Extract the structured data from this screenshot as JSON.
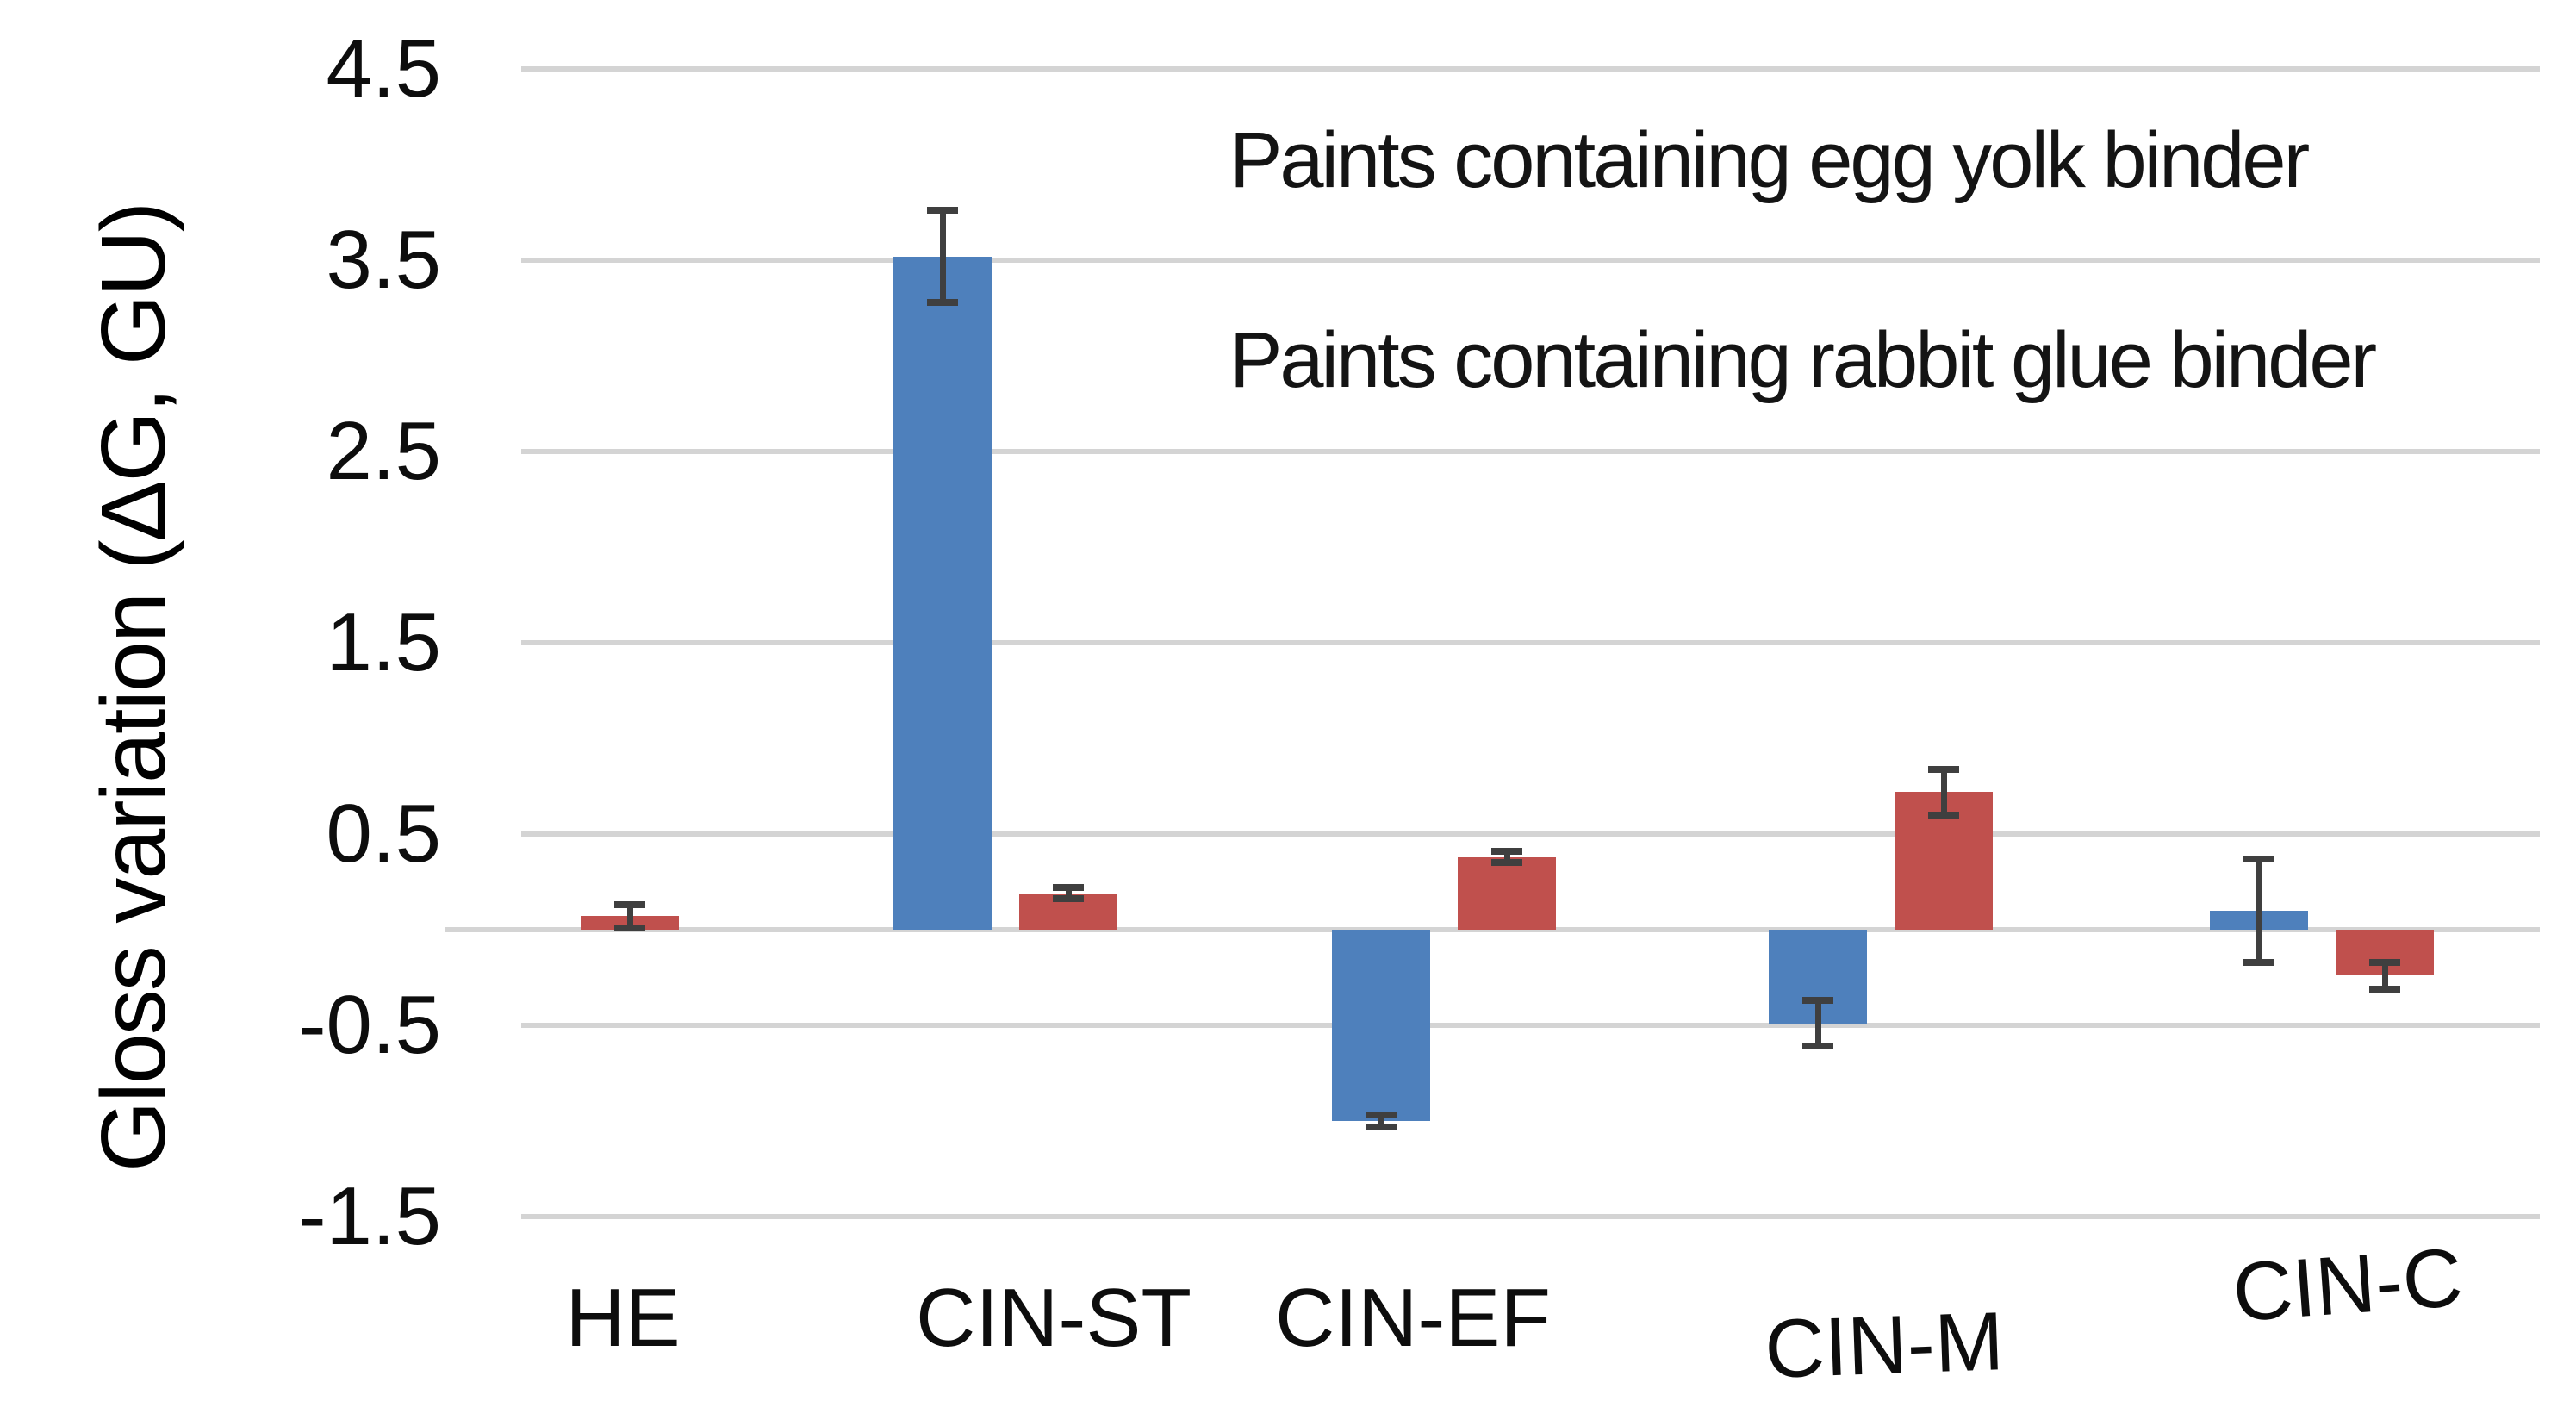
{
  "chart_data": {
    "type": "bar",
    "title": "",
    "xlabel": "",
    "ylabel": "Gloss variation (ΔG, GU)",
    "categories": [
      "HE",
      "CIN-ST",
      "CIN-EF",
      "CIN-M",
      "CIN-C"
    ],
    "series": [
      {
        "name": "Paints containing egg yolk binder",
        "color": "#4E80BC",
        "values": [
          0,
          3.52,
          -1.0,
          -0.49,
          0.1
        ],
        "errors": [
          0,
          0.24,
          0.03,
          0.12,
          0.27
        ]
      },
      {
        "name": "Paints containing rabbit glue binder",
        "color": "#C0504D",
        "values": [
          0.07,
          0.19,
          0.38,
          0.72,
          -0.24
        ],
        "errors": [
          0.06,
          0.03,
          0.03,
          0.12,
          0.07
        ]
      }
    ],
    "yticks": [
      4.5,
      3.5,
      2.5,
      1.5,
      0.5,
      -0.5,
      -1.5
    ],
    "ylim": [
      -1.9,
      4.6
    ],
    "grid": true,
    "legend_position": "top-right",
    "error_bars": true
  },
  "colors": {
    "grid": "#d4d4d4",
    "error_bar": "#3f3f3f",
    "text": "#0d0d0d",
    "background": "#ffffff"
  }
}
